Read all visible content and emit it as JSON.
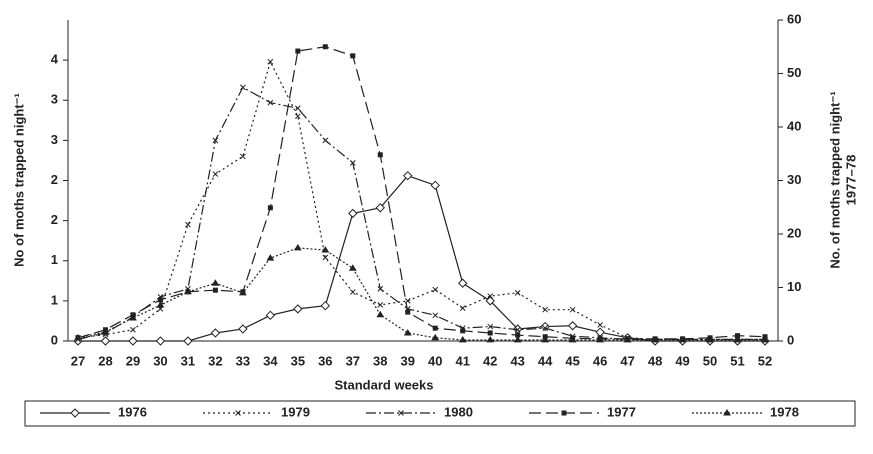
{
  "chart_data": {
    "type": "line",
    "x_label": "Standard weeks",
    "y_label": "No of moths trapped night⁻¹",
    "y2_label": [
      "No. of moths trapped night⁻¹",
      "1977–78"
    ],
    "categories": [
      "27",
      "28",
      "29",
      "30",
      "31",
      "32",
      "33",
      "34",
      "35",
      "36",
      "37",
      "38",
      "39",
      "40",
      "41",
      "42",
      "43",
      "44",
      "45",
      "46",
      "47",
      "48",
      "49",
      "50",
      "51",
      "52"
    ],
    "ylim": [
      0,
      4
    ],
    "yticks": [
      0,
      {
        "value": 0.5,
        "label": "1"
      },
      1,
      {
        "value": 1.5,
        "label": "2"
      },
      2,
      {
        "value": 2.5,
        "label": "3"
      },
      3,
      {
        "value": 3.5,
        "label": "4"
      }
    ],
    "y2lim": [
      0,
      60
    ],
    "y2ticks": [
      0,
      10,
      20,
      30,
      40,
      50,
      60
    ],
    "series": [
      {
        "name": "1976",
        "color": "#222",
        "dash": "none",
        "marker": "diamond",
        "values": [
          0,
          0,
          0,
          0,
          0,
          0.1,
          0.15,
          0.32,
          0.4,
          0.44,
          1.59,
          1.66,
          2.06,
          1.94,
          0.72,
          0.5,
          0.15,
          0.18,
          0.19,
          0.11,
          0.04,
          0,
          0,
          0,
          0,
          0
        ]
      },
      {
        "name": "1979",
        "color": "#222",
        "dash": "2,3",
        "marker": "x",
        "values": [
          0.04,
          0.08,
          0.14,
          0.4,
          1.45,
          2.08,
          2.3,
          3.48,
          2.8,
          1.04,
          0.61,
          0.45,
          0.5,
          0.64,
          0.41,
          0.56,
          0.6,
          0.39,
          0.39,
          0.2,
          0.04,
          0.02,
          0.02,
          0.02,
          0.02,
          0.02
        ]
      },
      {
        "name": "1980",
        "color": "#222",
        "dash": "10,3,2,3",
        "marker": "x",
        "values": [
          0.02,
          0.1,
          0.3,
          0.55,
          0.65,
          2.5,
          3.16,
          2.97,
          2.9,
          2.5,
          2.22,
          0.65,
          0.4,
          0.32,
          0.16,
          0.18,
          0.14,
          0.16,
          0.06,
          0.04,
          0.02,
          0.02,
          0.02,
          0.02,
          0.02,
          0.02
        ]
      },
      {
        "name": "1977",
        "color": "#222",
        "dash": "12,5",
        "marker": "square",
        "axis": "y2",
        "values": [
          0.6,
          2.1,
          4.9,
          7.7,
          9.2,
          9.5,
          9.2,
          24.9,
          54.2,
          55,
          53.3,
          34.8,
          5.4,
          2.4,
          1.9,
          1.5,
          1.1,
          0.8,
          0.5,
          0.4,
          0.4,
          0.4,
          0.4,
          0.6,
          1.0,
          0.8
        ]
      },
      {
        "name": "1978",
        "color": "#222",
        "dash": "2,2",
        "marker": "triangle",
        "axis": "y2",
        "values": [
          0.6,
          1.7,
          4.3,
          6.7,
          9.2,
          10.8,
          9,
          15.5,
          17.4,
          17,
          13.6,
          4.9,
          1.5,
          0.6,
          0.2,
          0.2,
          0.2,
          0.2,
          0.2,
          0.2,
          0.2,
          0.2,
          0.2,
          0.2,
          0.2,
          0.2
        ]
      }
    ]
  }
}
